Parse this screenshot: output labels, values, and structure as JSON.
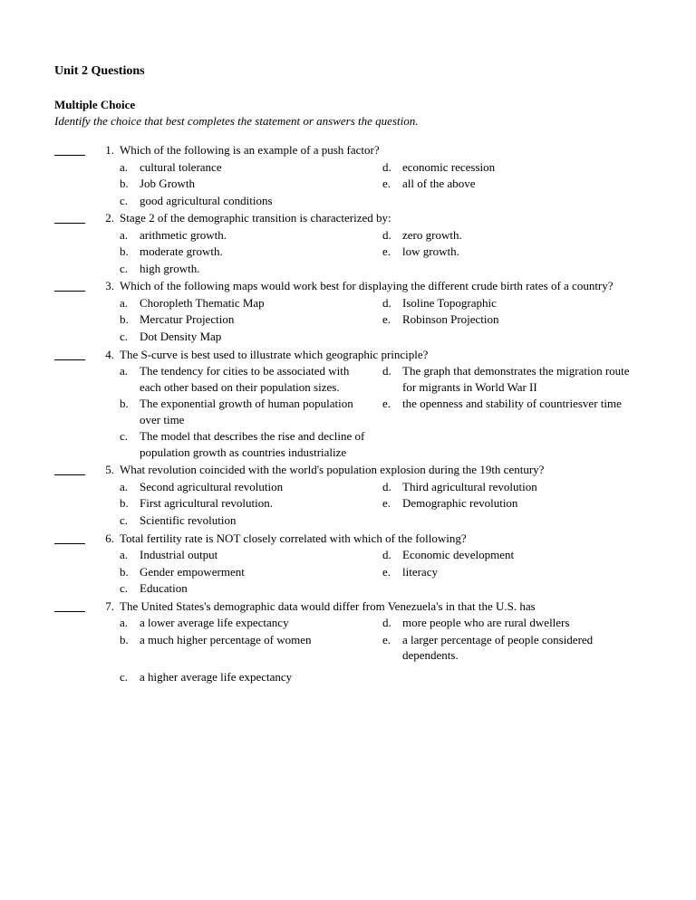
{
  "title": "Unit 2 Questions",
  "section_heading": "Multiple Choice",
  "instructions": "Identify the choice that best completes the statement or answers the question.",
  "questions": [
    {
      "num": "1.",
      "stem": "Which of the following is an example of a push factor?",
      "left": [
        {
          "l": "a.",
          "t": "cultural tolerance"
        },
        {
          "l": "b.",
          "t": "Job Growth"
        },
        {
          "l": "c.",
          "t": "good agricultural conditions"
        }
      ],
      "right": [
        {
          "l": "d.",
          "t": "economic recession"
        },
        {
          "l": "e.",
          "t": "all of the above"
        }
      ]
    },
    {
      "num": "2.",
      "stem": "Stage 2 of the demographic transition is characterized by:",
      "left": [
        {
          "l": "a.",
          "t": "arithmetic growth."
        },
        {
          "l": "b.",
          "t": "moderate growth."
        },
        {
          "l": "c.",
          "t": "high growth."
        }
      ],
      "right": [
        {
          "l": "d.",
          "t": "zero growth."
        },
        {
          "l": "e.",
          "t": "low growth."
        }
      ]
    },
    {
      "num": "3.",
      "stem": "Which of the following maps would work best for displaying the different crude birth rates of a country?",
      "left": [
        {
          "l": "a.",
          "t": "Choropleth Thematic Map"
        },
        {
          "l": "b.",
          "t": "Mercatur Projection"
        },
        {
          "l": "c.",
          "t": "Dot Density Map"
        }
      ],
      "right": [
        {
          "l": "d.",
          "t": "Isoline Topographic"
        },
        {
          "l": "e.",
          "t": "Robinson Projection"
        }
      ]
    },
    {
      "num": "4.",
      "stem": "The S-curve is best used to illustrate which geographic principle?",
      "left": [
        {
          "l": "a.",
          "t": "The tendency for cities to be associated with each other based on their population sizes."
        },
        {
          "l": "b.",
          "t": "The exponential growth of human population over time"
        },
        {
          "l": "c.",
          "t": "The model that describes the rise and decline of population growth as countries industrialize"
        }
      ],
      "right": [
        {
          "l": "d.",
          "t": "The graph that demonstrates the migration route for migrants in World War II"
        },
        {
          "l": "e.",
          "t": "the openness and stability of countriesver time"
        }
      ]
    },
    {
      "num": "5.",
      "stem": "What revolution coincided with the world's population explosion during the 19th century?",
      "left": [
        {
          "l": "a.",
          "t": "Second agricultural revolution"
        },
        {
          "l": "b.",
          "t": "First agricultural revolution."
        },
        {
          "l": "c.",
          "t": "Scientific revolution"
        }
      ],
      "right": [
        {
          "l": "d.",
          "t": "Third agricultural revolution"
        },
        {
          "l": "e.",
          "t": "Demographic revolution"
        }
      ]
    },
    {
      "num": "6.",
      "stem": "Total fertility rate is NOT closely correlated with which of the following?",
      "left": [
        {
          "l": "a.",
          "t": "Industrial output"
        },
        {
          "l": "b.",
          "t": "Gender empowerment"
        },
        {
          "l": "c.",
          "t": "Education"
        }
      ],
      "right": [
        {
          "l": "d.",
          "t": "Economic development"
        },
        {
          "l": "e.",
          "t": "literacy"
        }
      ]
    },
    {
      "num": "7.",
      "stem": "The United States's demographic data would differ from Venezuela's in that the U.S. has",
      "left": [
        {
          "l": "a.",
          "t": "a lower average life expectancy"
        },
        {
          "l": "b.",
          "t": "a much higher percentage of women"
        }
      ],
      "right": [
        {
          "l": "d.",
          "t": "more people who are rural dwellers"
        },
        {
          "l": "e.",
          "t": "a larger percentage of people considered dependents."
        }
      ],
      "trailing": {
        "l": "c.",
        "t": "a higher average life expectancy"
      }
    }
  ]
}
